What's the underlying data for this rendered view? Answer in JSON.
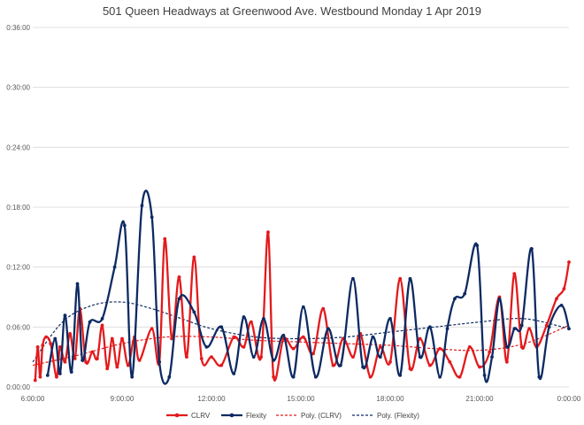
{
  "chart_data": {
    "type": "line",
    "title": "501 Queen  Headways at Greenwood Ave. Westbound  Monday 1 Apr 2019",
    "xlabel": "",
    "ylabel": "",
    "x_ticks": [
      "6:00:00",
      "9:00:00",
      "12:00:00",
      "15:00:00",
      "18:00:00",
      "21:00:00",
      "0:00:00"
    ],
    "y_ticks": [
      "0:00:00",
      "0:06:00",
      "0:12:00",
      "0:18:00",
      "0:24:00",
      "0:30:00",
      "0:36:00"
    ],
    "xlim": [
      "6:00:00",
      "0:00:00"
    ],
    "ylim": [
      "0:00:00",
      "0:36:00"
    ],
    "grid": "horizontal",
    "legend_position": "bottom",
    "colors": {
      "clrv": "#e31a1c",
      "flexity": "#0d2a63"
    },
    "series": [
      {
        "name": "CLRV",
        "style": "solid-markers",
        "color": "#e31a1c",
        "points": [
          [
            "6:05",
            "0:00:40"
          ],
          [
            "6:10",
            "0:04:00"
          ],
          [
            "6:15",
            "0:01:00"
          ],
          [
            "6:20",
            "0:04:10"
          ],
          [
            "6:27",
            "0:05:00"
          ],
          [
            "6:36",
            "0:04:20"
          ],
          [
            "6:48",
            "0:01:00"
          ],
          [
            "6:55",
            "0:04:00"
          ],
          [
            "7:05",
            "0:02:30"
          ],
          [
            "7:15",
            "0:05:20"
          ],
          [
            "7:25",
            "0:02:50"
          ],
          [
            "7:35",
            "0:07:50"
          ],
          [
            "7:47",
            "0:02:30"
          ],
          [
            "8:00",
            "0:03:30"
          ],
          [
            "8:10",
            "0:02:50"
          ],
          [
            "8:20",
            "0:06:10"
          ],
          [
            "8:30",
            "0:01:50"
          ],
          [
            "8:40",
            "0:04:50"
          ],
          [
            "8:50",
            "0:02:00"
          ],
          [
            "9:00",
            "0:04:50"
          ],
          [
            "9:12",
            "0:02:10"
          ],
          [
            "9:25",
            "0:05:00"
          ],
          [
            "9:35",
            "0:02:40"
          ],
          [
            "10:00",
            "0:05:50"
          ],
          [
            "10:15",
            "0:02:30"
          ],
          [
            "10:26",
            "0:14:50"
          ],
          [
            "10:40",
            "0:04:50"
          ],
          [
            "10:55",
            "0:11:00"
          ],
          [
            "11:10",
            "0:03:00"
          ],
          [
            "11:25",
            "0:13:00"
          ],
          [
            "11:40",
            "0:02:50"
          ],
          [
            "12:00",
            "0:03:00"
          ],
          [
            "12:20",
            "0:02:10"
          ],
          [
            "12:45",
            "0:05:00"
          ],
          [
            "13:05",
            "0:04:00"
          ],
          [
            "13:20",
            "0:06:30"
          ],
          [
            "13:40",
            "0:03:00"
          ],
          [
            "13:54",
            "0:15:30"
          ],
          [
            "14:05",
            "0:01:00"
          ],
          [
            "14:25",
            "0:04:50"
          ],
          [
            "14:45",
            "0:03:50"
          ],
          [
            "15:05",
            "0:05:00"
          ],
          [
            "15:25",
            "0:03:20"
          ],
          [
            "15:45",
            "0:07:50"
          ],
          [
            "16:05",
            "0:02:10"
          ],
          [
            "16:25",
            "0:04:50"
          ],
          [
            "16:45",
            "0:03:00"
          ],
          [
            "17:00",
            "0:05:20"
          ],
          [
            "17:20",
            "0:01:00"
          ],
          [
            "17:40",
            "0:04:00"
          ],
          [
            "18:00",
            "0:02:30"
          ],
          [
            "18:20",
            "0:10:50"
          ],
          [
            "18:40",
            "0:01:50"
          ],
          [
            "19:00",
            "0:04:50"
          ],
          [
            "19:20",
            "0:02:10"
          ],
          [
            "19:40",
            "0:03:50"
          ],
          [
            "20:00",
            "0:02:30"
          ],
          [
            "20:20",
            "0:01:00"
          ],
          [
            "20:40",
            "0:04:00"
          ],
          [
            "21:00",
            "0:02:00"
          ],
          [
            "21:20",
            "0:03:30"
          ],
          [
            "21:40",
            "0:09:00"
          ],
          [
            "21:55",
            "0:02:30"
          ],
          [
            "22:10",
            "0:11:20"
          ],
          [
            "22:25",
            "0:04:00"
          ],
          [
            "22:40",
            "0:05:50"
          ],
          [
            "22:55",
            "0:04:00"
          ],
          [
            "23:15",
            "0:06:10"
          ],
          [
            "23:35",
            "0:08:50"
          ],
          [
            "23:50",
            "0:09:50"
          ],
          [
            "24:00",
            "0:12:30"
          ]
        ]
      },
      {
        "name": "Flexity",
        "style": "solid-markers",
        "color": "#0d2a63",
        "points": [
          [
            "6:30",
            "0:01:10"
          ],
          [
            "6:45",
            "0:04:50"
          ],
          [
            "6:55",
            "0:01:20"
          ],
          [
            "7:05",
            "0:07:10"
          ],
          [
            "7:18",
            "0:01:30"
          ],
          [
            "7:30",
            "0:10:20"
          ],
          [
            "7:40",
            "0:02:40"
          ],
          [
            "7:55",
            "0:06:30"
          ],
          [
            "8:20",
            "0:06:50"
          ],
          [
            "8:45",
            "0:12:00"
          ],
          [
            "9:05",
            "0:16:10"
          ],
          [
            "9:20",
            "0:01:00"
          ],
          [
            "9:40",
            "0:18:10"
          ],
          [
            "10:00",
            "0:17:00"
          ],
          [
            "10:15",
            "0:02:30"
          ],
          [
            "10:35",
            "0:01:00"
          ],
          [
            "10:55",
            "0:08:50"
          ],
          [
            "11:25",
            "0:07:30"
          ],
          [
            "11:50",
            "0:04:00"
          ],
          [
            "12:20",
            "0:06:00"
          ],
          [
            "12:45",
            "0:01:20"
          ],
          [
            "13:05",
            "0:07:00"
          ],
          [
            "13:25",
            "0:03:00"
          ],
          [
            "13:45",
            "0:06:50"
          ],
          [
            "14:05",
            "0:02:40"
          ],
          [
            "14:25",
            "0:05:10"
          ],
          [
            "14:45",
            "0:01:00"
          ],
          [
            "15:05",
            "0:08:00"
          ],
          [
            "15:30",
            "0:01:00"
          ],
          [
            "15:55",
            "0:05:50"
          ],
          [
            "16:20",
            "0:02:10"
          ],
          [
            "16:45",
            "0:10:50"
          ],
          [
            "17:05",
            "0:02:00"
          ],
          [
            "17:25",
            "0:05:00"
          ],
          [
            "17:40",
            "0:03:00"
          ],
          [
            "18:00",
            "0:06:50"
          ],
          [
            "18:20",
            "0:01:10"
          ],
          [
            "18:40",
            "0:10:50"
          ],
          [
            "19:00",
            "0:03:00"
          ],
          [
            "19:20",
            "0:06:00"
          ],
          [
            "19:40",
            "0:01:00"
          ],
          [
            "19:55",
            "0:05:50"
          ],
          [
            "20:10",
            "0:08:50"
          ],
          [
            "20:30",
            "0:09:20"
          ],
          [
            "20:55",
            "0:14:10"
          ],
          [
            "21:10",
            "0:01:10"
          ],
          [
            "21:25",
            "0:03:00"
          ],
          [
            "21:40",
            "0:08:50"
          ],
          [
            "21:55",
            "0:04:00"
          ],
          [
            "22:10",
            "0:05:50"
          ],
          [
            "22:25",
            "0:06:10"
          ],
          [
            "22:45",
            "0:13:50"
          ],
          [
            "23:00",
            "0:01:00"
          ],
          [
            "23:20",
            "0:06:00"
          ],
          [
            "23:45",
            "0:08:10"
          ],
          [
            "24:00",
            "0:05:50"
          ]
        ]
      },
      {
        "name": "Poly. (CLRV)",
        "style": "dashed-trend",
        "color": "#e31a1c",
        "points": [
          [
            "6:00",
            "0:02:10"
          ],
          [
            "7:30",
            "0:03:10"
          ],
          [
            "9:00",
            "0:04:20"
          ],
          [
            "10:30",
            "0:05:00"
          ],
          [
            "12:00",
            "0:05:00"
          ],
          [
            "13:30",
            "0:04:40"
          ],
          [
            "15:00",
            "0:04:30"
          ],
          [
            "16:30",
            "0:04:20"
          ],
          [
            "18:00",
            "0:04:10"
          ],
          [
            "19:30",
            "0:03:50"
          ],
          [
            "21:00",
            "0:03:40"
          ],
          [
            "22:30",
            "0:04:20"
          ],
          [
            "24:00",
            "0:06:10"
          ]
        ]
      },
      {
        "name": "Poly. (Flexity)",
        "style": "dashed-trend",
        "color": "#0d2a63",
        "points": [
          [
            "6:00",
            "0:02:30"
          ],
          [
            "7:00",
            "0:06:30"
          ],
          [
            "8:00",
            "0:08:10"
          ],
          [
            "9:00",
            "0:08:30"
          ],
          [
            "10:00",
            "0:07:50"
          ],
          [
            "11:00",
            "0:06:50"
          ],
          [
            "12:00",
            "0:05:50"
          ],
          [
            "13:30",
            "0:05:00"
          ],
          [
            "15:00",
            "0:04:50"
          ],
          [
            "16:30",
            "0:05:00"
          ],
          [
            "18:00",
            "0:05:30"
          ],
          [
            "19:30",
            "0:06:00"
          ],
          [
            "21:00",
            "0:06:30"
          ],
          [
            "22:30",
            "0:06:50"
          ],
          [
            "24:00",
            "0:05:50"
          ]
        ]
      }
    ]
  }
}
